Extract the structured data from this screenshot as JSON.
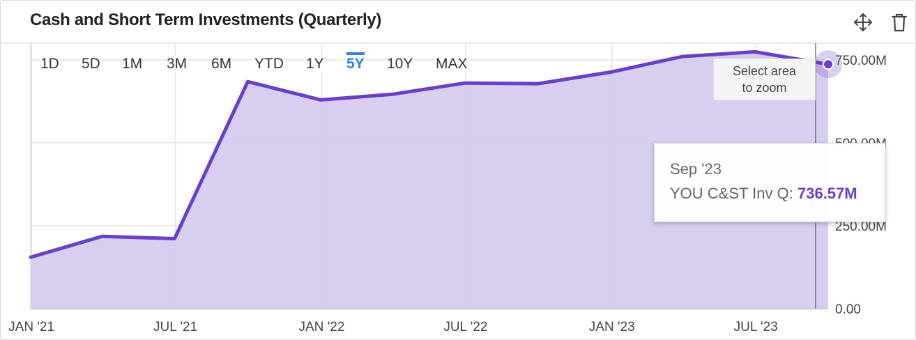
{
  "header": {
    "title": "Cash and Short Term Investments (Quarterly)",
    "move_icon": "move-arrows-icon",
    "delete_icon": "trash-icon"
  },
  "ranges": {
    "items": [
      "1D",
      "5D",
      "1M",
      "3M",
      "6M",
      "YTD",
      "1Y",
      "5Y",
      "10Y",
      "MAX"
    ],
    "selected": "5Y"
  },
  "zoom_hint": {
    "line1": "Select area",
    "line2": "to zoom"
  },
  "tooltip": {
    "date": "Sep '23",
    "series_label": "YOU C&ST Inv Q:",
    "value": "736.57M"
  },
  "colors": {
    "line": "#6a3fc8",
    "fill": "#d6ccef",
    "accent": "#2f80e0"
  },
  "chart_data": {
    "type": "area",
    "title": "Cash and Short Term Investments (Quarterly)",
    "x_tick_labels": [
      "JAN '21",
      "JUL '21",
      "JAN '22",
      "JUL '22",
      "JAN '23",
      "JUL '23"
    ],
    "y_tick_labels": [
      "0.00",
      "250.00M",
      "500.00M",
      "750.00M"
    ],
    "ylim": [
      0,
      800000000
    ],
    "grid": true,
    "series": [
      {
        "name": "YOU C&ST Inv Q",
        "x": [
          "2020-12-31",
          "2021-03-31",
          "2021-06-30",
          "2021-09-30",
          "2021-12-31",
          "2022-03-31",
          "2022-06-30",
          "2022-09-30",
          "2022-12-31",
          "2023-03-31",
          "2023-06-30",
          "2023-09-30"
        ],
        "values": [
          155000000,
          218000000,
          211000000,
          684000000,
          629000000,
          646000000,
          680000000,
          678000000,
          713000000,
          760000000,
          774000000,
          736570000
        ]
      }
    ]
  }
}
